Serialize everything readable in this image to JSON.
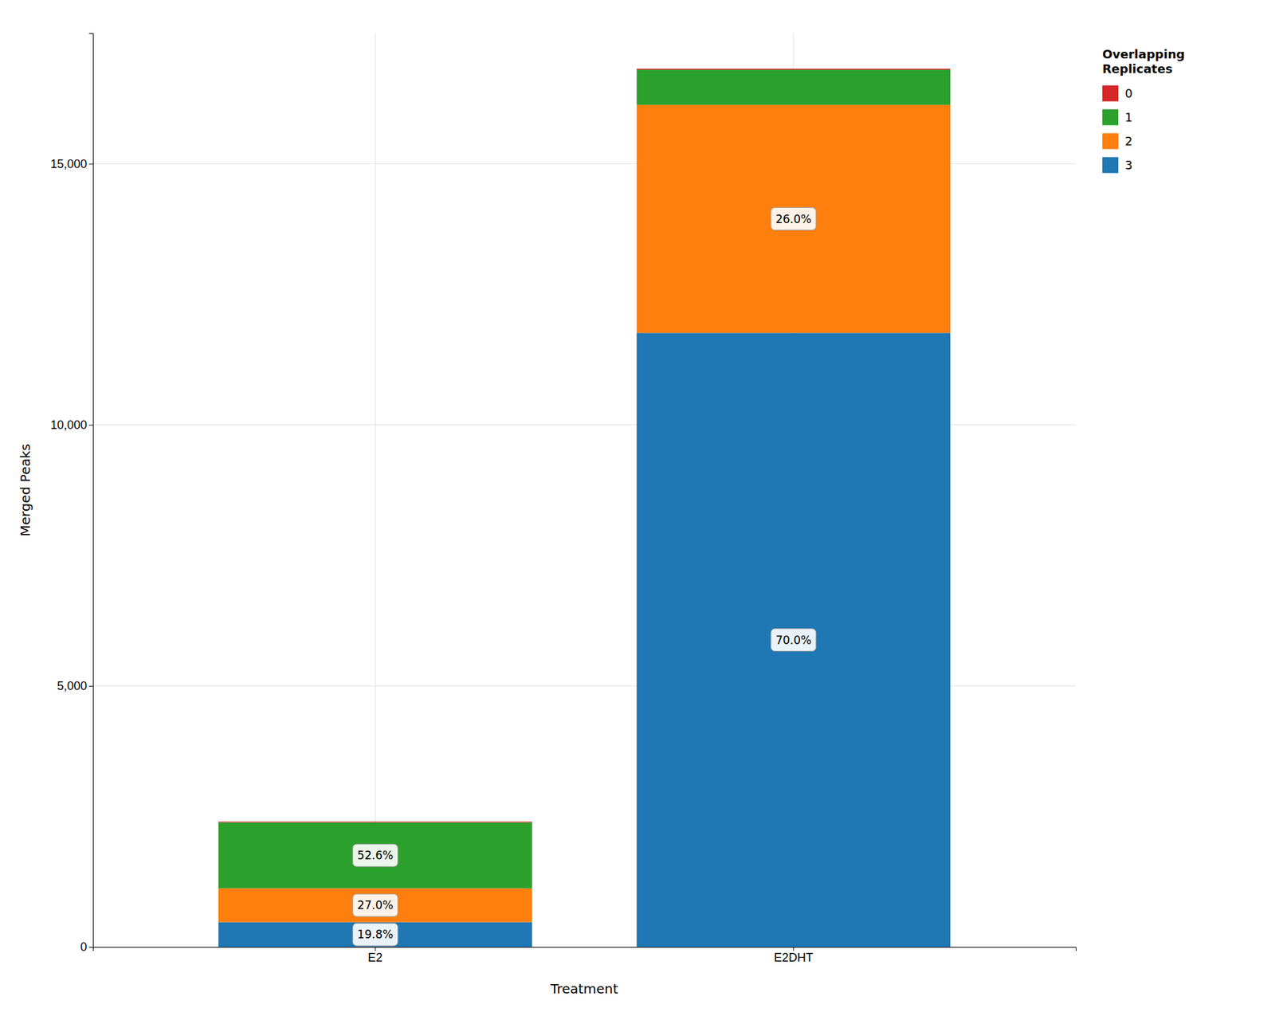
{
  "chart_data": {
    "type": "bar",
    "stacked": true,
    "categories": [
      "E2",
      "E2DHT"
    ],
    "series": [
      {
        "name": "3",
        "values": [
          475,
          11760
        ]
      },
      {
        "name": "2",
        "values": [
          648,
          4368
        ]
      },
      {
        "name": "1",
        "values": [
          1262,
          672
        ]
      },
      {
        "name": "0",
        "values": [
          15,
          20
        ]
      }
    ],
    "xlabel": "Treatment",
    "ylabel": "Merged Peaks",
    "legend_title": "Overlapping\nReplicates",
    "legend": "right",
    "annotations": [
      {
        "text": "19.8%",
        "category": "E2",
        "series": "3"
      },
      {
        "text": "27.0%",
        "category": "E2",
        "series": "2"
      },
      {
        "text": "52.6%",
        "category": "E2",
        "series": "1"
      },
      {
        "text": "70.0%",
        "category": "E2DHT",
        "series": "3"
      },
      {
        "text": "26.0%",
        "category": "E2DHT",
        "series": "2"
      }
    ],
    "ylim": [
      0,
      17500
    ],
    "yticks": [
      0,
      {
        "value": 5000,
        "label": "5,000"
      },
      {
        "value": 10000,
        "label": "10,000"
      },
      {
        "value": 15000,
        "label": "15,000"
      }
    ],
    "grid": true
  }
}
